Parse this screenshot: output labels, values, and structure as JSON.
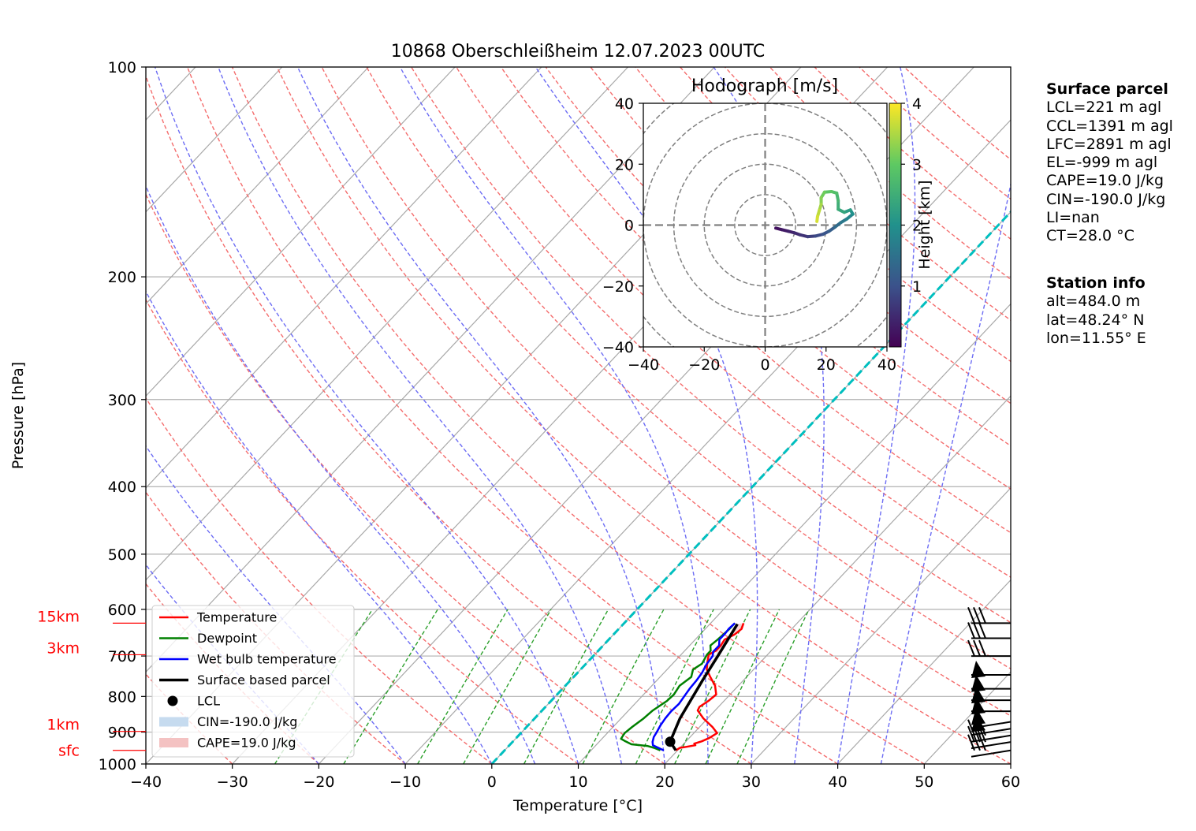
{
  "title": "10868 Oberschleißheim 12.07.2023 00UTC",
  "chart_data": [
    {
      "type": "line",
      "title": "10868 Oberschleißheim 12.07.2023 00UTC",
      "xlabel": "Temperature [°C]",
      "ylabel": "Pressure [hPa]",
      "xlim": [
        -40,
        60
      ],
      "ylim": [
        1000,
        100
      ],
      "y_scale": "log",
      "x_ticks": [
        "−40",
        "−30",
        "−20",
        "−10",
        "0",
        "10",
        "20",
        "30",
        "40",
        "50",
        "60"
      ],
      "y_ticks": [
        "100",
        "200",
        "300",
        "400",
        "500",
        "600",
        "700",
        "800",
        "900",
        "1000"
      ],
      "height_labels": [
        {
          "label": "15km",
          "p": 628
        },
        {
          "label": "3km",
          "p": 697
        },
        {
          "label": "1km",
          "p": 898
        },
        {
          "label": "sfc",
          "p": 956
        }
      ],
      "grid": true,
      "legend": "lower-left",
      "legend_entries": [
        "Temperature",
        "Dewpoint",
        "Wet bulb temperature",
        "Surface based parcel",
        "LCL",
        "CIN=-190.0 J/kg",
        "CAPE=19.0 J/kg"
      ],
      "series": [
        {
          "name": "Temperature",
          "color": "#ff0000",
          "points": [
            [
              19.8,
              956
            ],
            [
              20.0,
              948
            ],
            [
              20.6,
              945
            ],
            [
              21.5,
              940
            ],
            [
              21.2,
              935
            ],
            [
              21.8,
              928
            ],
            [
              22.3,
              918
            ],
            [
              22.7,
              903
            ],
            [
              21.5,
              885
            ],
            [
              19.5,
              860
            ],
            [
              18.0,
              838
            ],
            [
              17.8,
              828
            ],
            [
              18.2,
              812
            ],
            [
              18.4,
              795
            ],
            [
              17.3,
              772
            ],
            [
              15.8,
              750
            ],
            [
              14.6,
              732
            ],
            [
              14.0,
              718
            ],
            [
              13.2,
              697
            ],
            [
              13.6,
              688
            ],
            [
              13.6,
              676
            ],
            [
              13.4,
              663
            ],
            [
              14.0,
              652
            ],
            [
              14.2,
              640
            ],
            [
              13.8,
              628
            ]
          ]
        },
        {
          "name": "Dewpoint",
          "color": "#008000",
          "points": [
            [
              18.0,
              956
            ],
            [
              17.0,
              948
            ],
            [
              16.0,
              942
            ],
            [
              14.0,
              937
            ],
            [
              13.0,
              928
            ],
            [
              12.2,
              920
            ],
            [
              12.0,
              903
            ],
            [
              12.2,
              885
            ],
            [
              12.6,
              860
            ],
            [
              12.8,
              838
            ],
            [
              13.4,
              812
            ],
            [
              13.5,
              795
            ],
            [
              13.2,
              772
            ],
            [
              13.6,
              750
            ],
            [
              13.0,
              732
            ],
            [
              13.4,
              718
            ],
            [
              13.0,
              697
            ],
            [
              13.0,
              688
            ],
            [
              12.4,
              676
            ],
            [
              12.6,
              663
            ],
            [
              12.8,
              640
            ],
            [
              12.8,
              628
            ]
          ]
        },
        {
          "name": "Wet bulb temperature",
          "color": "#0000ff",
          "points": [
            [
              18.4,
              956
            ],
            [
              17.5,
              948
            ],
            [
              16.6,
              940
            ],
            [
              16.2,
              930
            ],
            [
              15.8,
              915
            ],
            [
              15.6,
              900
            ],
            [
              15.3,
              880
            ],
            [
              15.1,
              860
            ],
            [
              15.0,
              840
            ],
            [
              15.1,
              820
            ],
            [
              14.9,
              800
            ],
            [
              14.7,
              780
            ],
            [
              14.6,
              760
            ],
            [
              14.4,
              740
            ],
            [
              14.0,
              720
            ],
            [
              13.8,
              700
            ],
            [
              13.4,
              690
            ],
            [
              13.4,
              676
            ],
            [
              12.8,
              663
            ],
            [
              12.8,
              650
            ],
            [
              12.7,
              640
            ],
            [
              12.8,
              628
            ]
          ]
        },
        {
          "name": "Surface based parcel",
          "color": "#000000",
          "points": [
            [
              19.8,
              956
            ],
            [
              18.2,
              929
            ],
            [
              16.8,
              860
            ],
            [
              15.3,
              760
            ],
            [
              14.4,
              700
            ],
            [
              13.2,
              630
            ]
          ]
        }
      ],
      "lcl": {
        "t": 18.2,
        "p": 929
      },
      "isotherm_0c": "cyan dashed",
      "wind_barbs_pressures": [
        956,
        930,
        910,
        890,
        870,
        840,
        810,
        780,
        745,
        700,
        660,
        628
      ]
    },
    {
      "type": "line",
      "title": "Hodograph [m/s]",
      "xlim": [
        -40,
        40
      ],
      "ylim": [
        -40,
        40
      ],
      "x_ticks": [
        "−40",
        "−20",
        "0",
        "20",
        "40"
      ],
      "y_ticks": [
        "−40",
        "−20",
        "0",
        "20",
        "40"
      ],
      "colorbar_label": "Height [km]",
      "colorbar_ticks": [
        "1",
        "2",
        "3",
        "4"
      ],
      "colorbar_range": [
        0,
        4
      ],
      "points": [
        [
          3.5,
          -1.0,
          0.2
        ],
        [
          5.5,
          -1.5,
          0.3
        ],
        [
          7.5,
          -2.0,
          0.4
        ],
        [
          9.5,
          -2.5,
          0.5
        ],
        [
          11.5,
          -3.2,
          0.6
        ],
        [
          14.0,
          -3.8,
          0.75
        ],
        [
          16.5,
          -3.6,
          0.9
        ],
        [
          19.0,
          -3.0,
          1.05
        ],
        [
          21.0,
          -2.0,
          1.2
        ],
        [
          23.0,
          -0.6,
          1.4
        ],
        [
          24.8,
          0.8,
          1.6
        ],
        [
          26.8,
          2.0,
          1.8
        ],
        [
          28.8,
          3.6,
          2.0
        ],
        [
          28.0,
          5.0,
          2.2
        ],
        [
          26.0,
          4.2,
          2.35
        ],
        [
          24.0,
          5.2,
          2.5
        ],
        [
          24.0,
          8.0,
          2.65
        ],
        [
          23.5,
          10.5,
          2.8
        ],
        [
          21.8,
          11.0,
          2.95
        ],
        [
          19.5,
          10.8,
          3.1
        ],
        [
          18.4,
          9.0,
          3.25
        ],
        [
          18.4,
          6.8,
          3.45
        ],
        [
          17.8,
          4.8,
          3.6
        ],
        [
          17.2,
          2.8,
          3.75
        ],
        [
          17.0,
          1.2,
          3.9
        ]
      ]
    }
  ],
  "surface_parcel": {
    "heading": "Surface parcel",
    "lines": [
      "LCL=221 m agl",
      "CCL=1391 m agl",
      "LFC=2891 m agl",
      "EL=-999 m agl",
      "CAPE=19.0 J/kg",
      "CIN=-190.0 J/kg",
      "LI=nan",
      "CT=28.0 °C"
    ]
  },
  "station_info": {
    "heading": "Station info",
    "lines": [
      "alt=484.0 m",
      "lat=48.24° N",
      "lon=11.55° E"
    ]
  }
}
